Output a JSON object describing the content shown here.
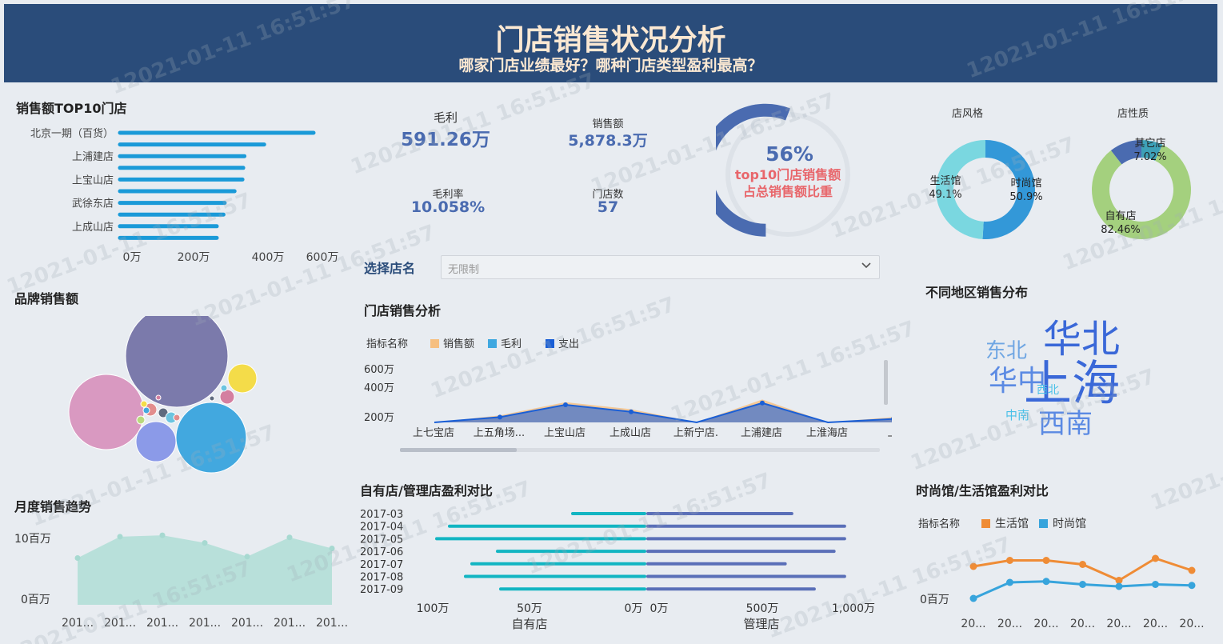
{
  "header": {
    "title": "门店销售状况分析",
    "subtitle": "哪家门店业绩最好？哪种门店类型盈利最高？"
  },
  "top10": {
    "title": "销售额TOP10门店",
    "labels": [
      "北京一期（百货）",
      "",
      "上浦建店",
      "",
      "上宝山店",
      "",
      "武徐东店",
      "",
      "上成山店",
      ""
    ],
    "values": [
      490,
      365,
      315,
      312,
      310,
      290,
      265,
      262,
      245,
      245
    ],
    "ticks": [
      "0万",
      "200万",
      "400万",
      "600万"
    ],
    "color": "#1a9ad8"
  },
  "kpis": {
    "gross_profit_label": "毛利",
    "gross_profit_value": "591.26万",
    "sales_label": "销售额",
    "sales_value": "5,878.3万",
    "margin_label": "毛利率",
    "margin_value": "10.058%",
    "stores_label": "门店数",
    "stores_value": "57"
  },
  "gauge": {
    "percent_text": "56%",
    "percent": 0.56,
    "line1": "top10门店销售额",
    "line2": "占总销售额比重",
    "color": "#4a6bb0",
    "label_color": "#e8666b"
  },
  "donut_style": {
    "title": "店风格",
    "slices": [
      {
        "label": "时尚馆",
        "pct_text": "50.9%",
        "value": 50.9,
        "color": "#3398d8"
      },
      {
        "label": "生活馆",
        "pct_text": "49.1%",
        "value": 49.1,
        "color": "#7ad7e0"
      }
    ]
  },
  "donut_nature": {
    "title": "店性质",
    "slices": [
      {
        "label": "其它店",
        "pct_text": "7.02%",
        "value": 7.02,
        "color": "#3ea1b8"
      },
      {
        "label": "自有店",
        "pct_text": "82.46%",
        "value": 82.46,
        "color": "#a4d07e"
      },
      {
        "label": "",
        "pct_text": "",
        "value": 10.52,
        "color": "#4a6bb0"
      }
    ]
  },
  "filter": {
    "label": "选择店名",
    "placeholder": "无限制"
  },
  "brand": {
    "title": "品牌销售额",
    "colors": [
      "#7b7aab",
      "#d999c1",
      "#42a8df",
      "#8b9ae8",
      "#f4dc49",
      "#d47fa0",
      "#e28d8d",
      "#b9d97d",
      "#5f6b7e",
      "#6cc4e0"
    ]
  },
  "store_analysis": {
    "title": "门店销售分析",
    "legend_title": "指标名称",
    "legend": [
      {
        "name": "销售额",
        "color": "#f6bf80"
      },
      {
        "name": "毛利",
        "color": "#3fa8e0"
      },
      {
        "name": "支出",
        "color": "#1a5fd6"
      }
    ],
    "yticks": [
      "600万",
      "400万",
      "200万"
    ],
    "categories": [
      "上七宝店",
      "上五角场...",
      "上宝山店",
      "上成山店",
      "上新宁店.",
      "上浦建店",
      "上淮海店",
      "上"
    ],
    "sales": [
      0,
      80,
      230,
      150,
      0,
      260,
      0,
      60
    ],
    "expense": [
      0,
      60,
      200,
      120,
      0,
      220,
      0,
      40
    ]
  },
  "region": {
    "title": "不同地区销售分布",
    "words": [
      {
        "text": "华北",
        "size": 48,
        "color": "#3a68d8"
      },
      {
        "text": "上海",
        "size": 60,
        "color": "#3a68d8"
      },
      {
        "text": "华中",
        "size": 36,
        "color": "#5b8ae3"
      },
      {
        "text": "东北",
        "size": 26,
        "color": "#6fa6e3"
      },
      {
        "text": "西南",
        "size": 34,
        "color": "#5b8ae3"
      },
      {
        "text": "西北",
        "size": 14,
        "color": "#49c0e8"
      },
      {
        "text": "中南",
        "size": 15,
        "color": "#49c0e8"
      }
    ]
  },
  "monthly": {
    "title": "月度销售趋势",
    "yticks": [
      "10百万",
      "0百万"
    ],
    "xticks": [
      "201...",
      "201...",
      "201...",
      "201...",
      "201...",
      "201...",
      "201..."
    ],
    "values": [
      6.8,
      9.9,
      10.1,
      9.0,
      7.0,
      9.8,
      8.2
    ],
    "ymax": 10,
    "color": "#b8e0da"
  },
  "own_vs_managed": {
    "title": "自有店/管理店盈利对比",
    "months": [
      "2017-03",
      "2017-04",
      "2017-05",
      "2017-06",
      "2017-07",
      "2017-08",
      "2017-09"
    ],
    "own": [
      45,
      122,
      130,
      92,
      108,
      112,
      90
    ],
    "managed": [
      545,
      745,
      745,
      705,
      520,
      745,
      630
    ],
    "left_ticks": [
      "100万",
      "50万",
      "0万"
    ],
    "right_ticks": [
      "0万",
      "500万",
      "1,000万"
    ],
    "left_label": "自有店",
    "right_label": "管理店",
    "left_color": "#12b5c2",
    "right_color": "#5a6fb8"
  },
  "style_compare": {
    "title": "时尚馆/生活馆盈利对比",
    "legend_title": "指标名称",
    "legend": [
      {
        "name": "生活馆",
        "color": "#ef8c36"
      },
      {
        "name": "时尚馆",
        "color": "#37a4dc"
      }
    ],
    "ytick": "0百万",
    "xticks": [
      "20...",
      "20...",
      "20...",
      "20...",
      "20...",
      "20...",
      "20..."
    ],
    "life": [
      1.6,
      1.9,
      1.9,
      1.7,
      0.9,
      2.0,
      1.4
    ],
    "fashion": [
      0.0,
      0.8,
      0.85,
      0.7,
      0.6,
      0.7,
      0.65
    ]
  },
  "watermark": "12021-01-11 16:51:57"
}
